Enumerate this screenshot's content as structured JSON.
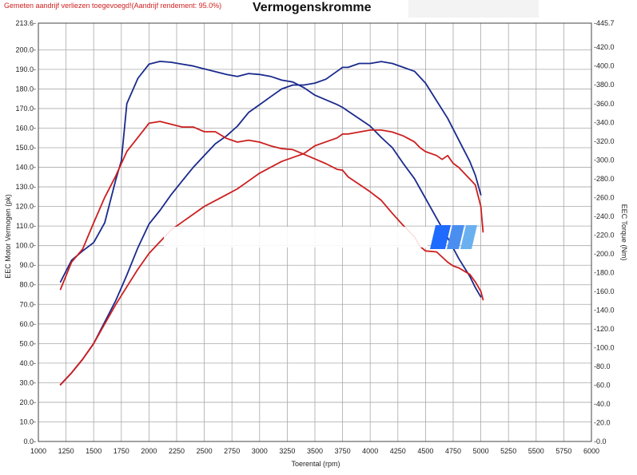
{
  "header": {
    "note": "Gemeten aandrijf verliezen toegevoegd!(Aandrijf rendement: 95.0%)",
    "title": "Vermogenskromme"
  },
  "colors": {
    "run1": "#1a2a8c",
    "run2": "#cc1f1f",
    "grid": "#a9a9a9",
    "note": "#d02020",
    "logo_dark": "#1f6bff",
    "logo_light": "#6ab0f0"
  },
  "chart_data": {
    "type": "line",
    "title": "Vermogenskromme",
    "xlabel": "Toerental (rpm)",
    "ylabel": "EEC Motor Vermogen (pk)",
    "y2label": "EEC Torque (Nm)",
    "xlim": [
      1000,
      6000
    ],
    "ylim": [
      0,
      213.6
    ],
    "y2lim": [
      0,
      445.7
    ],
    "x_ticks": [
      1000,
      1250,
      1500,
      1750,
      2000,
      2250,
      2500,
      2750,
      3000,
      3250,
      3500,
      3750,
      4000,
      4250,
      4500,
      4750,
      5000,
      5250,
      5500,
      5750,
      6000
    ],
    "y_ticks": [
      "0.0",
      "10.0",
      "20.0",
      "30.0",
      "40.0",
      "50.0",
      "60.0",
      "70.0",
      "80.0",
      "90.0",
      "100.0",
      "110.0",
      "120.0",
      "130.0",
      "140.0",
      "150.0",
      "160.0",
      "170.0",
      "180.0",
      "190.0",
      "200.0",
      "213.6"
    ],
    "y2_ticks": [
      "0.0",
      "20.0",
      "40.0",
      "60.0",
      "80.0",
      "100.0",
      "120.0",
      "140.0",
      "160.0",
      "180.0",
      "200.0",
      "220.0",
      "240.0",
      "260.0",
      "280.0",
      "300.0",
      "320.0",
      "340.0",
      "360.0",
      "380.0",
      "400.0",
      "420.0",
      "445.7"
    ],
    "grid": true,
    "series": [
      {
        "color": "#1a2a8c",
        "axis": "right",
        "kind": "torque",
        "x": [
          1200,
          1300,
          1400,
          1500,
          1600,
          1700,
          1750,
          1800,
          1900,
          2000,
          2100,
          2200,
          2300,
          2400,
          2500,
          2600,
          2700,
          2800,
          2900,
          3000,
          3100,
          3200,
          3300,
          3400,
          3500,
          3600,
          3700,
          3750,
          3800,
          3900,
          4000,
          4100,
          4200,
          4300,
          4400,
          4500,
          4600,
          4700,
          4800,
          4900,
          4950,
          5000
        ],
        "values": [
          170,
          193,
          203,
          212,
          233,
          279,
          299,
          360,
          387,
          402,
          405,
          404,
          402,
          400,
          397,
          394,
          391,
          389,
          392,
          391,
          389,
          385,
          383,
          377,
          369,
          364,
          359,
          356,
          352,
          344,
          336,
          324,
          313,
          296,
          280,
          259,
          238,
          217,
          195,
          176,
          164,
          154
        ]
      },
      {
        "color": "#1a2a8c",
        "axis": "left",
        "kind": "power",
        "x": [
          1200,
          1300,
          1400,
          1500,
          1600,
          1700,
          1800,
          1900,
          2000,
          2100,
          2200,
          2300,
          2400,
          2500,
          2600,
          2700,
          2800,
          2900,
          3000,
          3100,
          3200,
          3300,
          3400,
          3500,
          3600,
          3700,
          3750,
          3800,
          3900,
          4000,
          4100,
          4200,
          4300,
          4400,
          4500,
          4600,
          4700,
          4800,
          4900,
          4950,
          5000
        ],
        "values": [
          29,
          35,
          42,
          50,
          61,
          72,
          85,
          99,
          111,
          118,
          126,
          133,
          140,
          146,
          152,
          156,
          161,
          168,
          172,
          176,
          180,
          182,
          182,
          183,
          185,
          189,
          191,
          191,
          193,
          193,
          194,
          193,
          191,
          189,
          183,
          174,
          165,
          154,
          143,
          136,
          126
        ]
      },
      {
        "color": "#cc1f1f",
        "axis": "right",
        "kind": "torque",
        "x": [
          1200,
          1300,
          1400,
          1500,
          1600,
          1700,
          1800,
          1900,
          2000,
          2100,
          2200,
          2300,
          2400,
          2500,
          2600,
          2700,
          2800,
          2900,
          3000,
          3100,
          3200,
          3300,
          3400,
          3500,
          3600,
          3700,
          3750,
          3800,
          3900,
          4000,
          4100,
          4200,
          4300,
          4400,
          4450,
          4500,
          4600,
          4700,
          4750,
          4800,
          4900,
          4950,
          5000,
          5020
        ],
        "values": [
          162,
          191,
          205,
          233,
          260,
          283,
          309,
          324,
          339,
          341,
          338,
          335,
          335,
          330,
          330,
          323,
          319,
          321,
          319,
          315,
          312,
          311,
          306,
          301,
          296,
          290,
          289,
          282,
          274,
          266,
          257,
          243,
          230,
          218,
          208,
          203,
          202,
          191,
          187,
          185,
          178,
          170,
          160,
          151
        ]
      },
      {
        "color": "#cc1f1f",
        "axis": "left",
        "kind": "power",
        "x": [
          1200,
          1300,
          1400,
          1500,
          1600,
          1700,
          1800,
          1900,
          2000,
          2100,
          2200,
          2300,
          2400,
          2500,
          2600,
          2700,
          2800,
          2900,
          3000,
          3100,
          3200,
          3300,
          3400,
          3500,
          3600,
          3700,
          3750,
          3800,
          3900,
          4000,
          4100,
          4200,
          4300,
          4400,
          4450,
          4500,
          4600,
          4650,
          4700,
          4750,
          4800,
          4850,
          4900,
          4950,
          5000,
          5020
        ],
        "values": [
          29,
          35,
          42,
          50,
          60,
          70,
          79,
          88,
          96,
          102,
          108,
          112,
          116,
          120,
          123,
          126,
          129,
          133,
          137,
          140,
          143,
          145,
          147,
          151,
          153,
          155,
          157,
          157,
          158,
          159,
          159,
          158,
          156,
          153,
          150,
          148,
          146,
          144,
          146,
          142,
          140,
          137,
          134,
          131,
          120,
          107
        ]
      }
    ]
  }
}
